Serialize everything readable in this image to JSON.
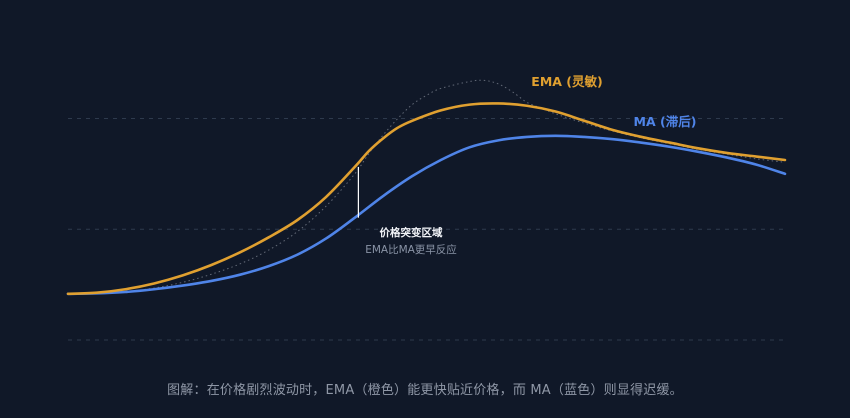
{
  "chart_data": {
    "type": "line",
    "title": "",
    "xlabel": "",
    "ylabel": "",
    "grid": true,
    "legend": "inline-labels",
    "series": [
      {
        "name": "EMA (灵敏)",
        "color": "#e0a030",
        "style": "solid",
        "x": [
          0,
          4,
          8,
          12,
          16,
          20,
          24,
          28,
          32,
          36,
          40,
          42,
          44,
          46,
          48,
          52,
          56,
          60,
          64,
          68,
          72,
          76,
          80,
          84,
          88,
          92,
          96,
          100
        ],
        "y": [
          5,
          5.5,
          7,
          9.5,
          13,
          17.5,
          23,
          29.5,
          37,
          47,
          60,
          67,
          72.5,
          77,
          80,
          84.5,
          87,
          87.5,
          86.5,
          84,
          80,
          76,
          73,
          70.5,
          68,
          66,
          64.5,
          63
        ]
      },
      {
        "name": "MA (滞后)",
        "color": "#4f84e8",
        "style": "solid",
        "x": [
          0,
          4,
          8,
          12,
          16,
          20,
          24,
          28,
          32,
          36,
          40,
          44,
          48,
          52,
          56,
          60,
          64,
          68,
          72,
          76,
          80,
          84,
          88,
          92,
          96,
          100
        ],
        "y": [
          5,
          5.2,
          5.8,
          7,
          8.6,
          10.6,
          13.3,
          17,
          22,
          29,
          38,
          47.5,
          56,
          63,
          68.5,
          71.5,
          73,
          73.5,
          73,
          72,
          70.5,
          68.7,
          66.5,
          64,
          61,
          57
        ]
      },
      {
        "color": "#6b7280",
        "style": "dotted",
        "x": [
          0,
          4,
          8,
          12,
          16,
          20,
          24,
          28,
          32,
          36,
          40,
          42,
          44,
          46,
          48,
          50,
          52,
          56,
          58,
          60,
          62,
          64,
          66,
          68,
          72,
          76,
          80,
          84,
          88,
          92,
          96,
          100
        ],
        "y": [
          5,
          5.2,
          6,
          7.5,
          10,
          13.5,
          18,
          24,
          32,
          43,
          57,
          66,
          74,
          81,
          87,
          91,
          94,
          97,
          97.5,
          96,
          92.5,
          88,
          85.5,
          83,
          79,
          75.5,
          72.5,
          70,
          67.5,
          65.5,
          63.5,
          62
        ]
      }
    ],
    "xlim": [
      0,
      100
    ],
    "ylim": [
      -15,
      115
    ],
    "gridlines_y": [
      -15,
      33,
      81
    ]
  },
  "annotation": {
    "title": "价格突变区域",
    "subtitle": "EMA比MA更早反应",
    "x": 40.5,
    "y_top": 60,
    "y_bottom": 38
  },
  "caption": "图解：在价格剧烈波动时，EMA（橙色）能更快贴近价格，而 MA（蓝色）则显得迟缓。",
  "colors": {
    "background": "#101828",
    "grid": "#2e3a4d",
    "ema": "#e0a030",
    "ma": "#4f84e8",
    "price": "#6b7280"
  }
}
